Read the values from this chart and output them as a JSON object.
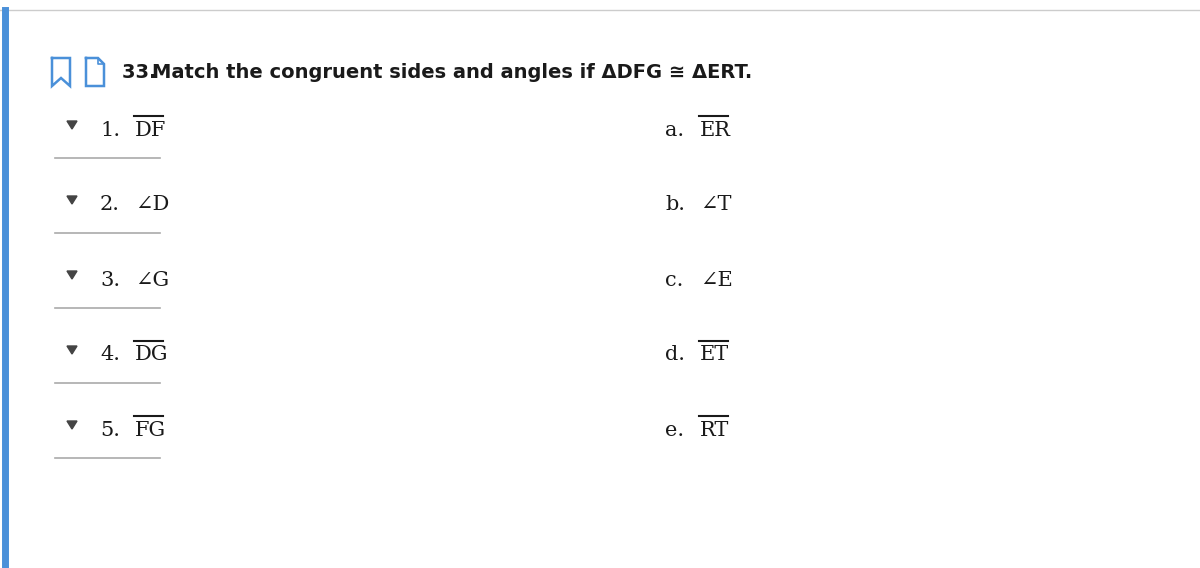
{
  "title_prefix": "33. ",
  "title_bold": "Match the congruent sides and angles if ΔDFG ≅ ΔERT.",
  "bg_color": "#ffffff",
  "border_top_color": "#cccccc",
  "left_border_color": "#4a90d9",
  "icon_color": "#4a90d9",
  "left_items": [
    {
      "num": "1.",
      "label": "DF",
      "overline": true
    },
    {
      "num": "2.",
      "label": "∠D",
      "overline": false
    },
    {
      "num": "3.",
      "label": "∠G",
      "overline": false
    },
    {
      "num": "4.",
      "label": "DG",
      "overline": true
    },
    {
      "num": "5.",
      "label": "FG",
      "overline": true
    }
  ],
  "right_items": [
    {
      "letter": "a.",
      "label": "ER",
      "overline": true
    },
    {
      "letter": "b.",
      "label": "∠T",
      "overline": false
    },
    {
      "letter": "c.",
      "label": "∠E",
      "overline": false
    },
    {
      "letter": "d.",
      "label": "ET",
      "overline": true
    },
    {
      "letter": "e.",
      "label": "RT",
      "overline": true
    }
  ],
  "font_size_title": 14,
  "font_size_items": 15,
  "text_color": "#1a1a1a",
  "line_color": "#aaaaaa",
  "dropdown_color": "#444444"
}
